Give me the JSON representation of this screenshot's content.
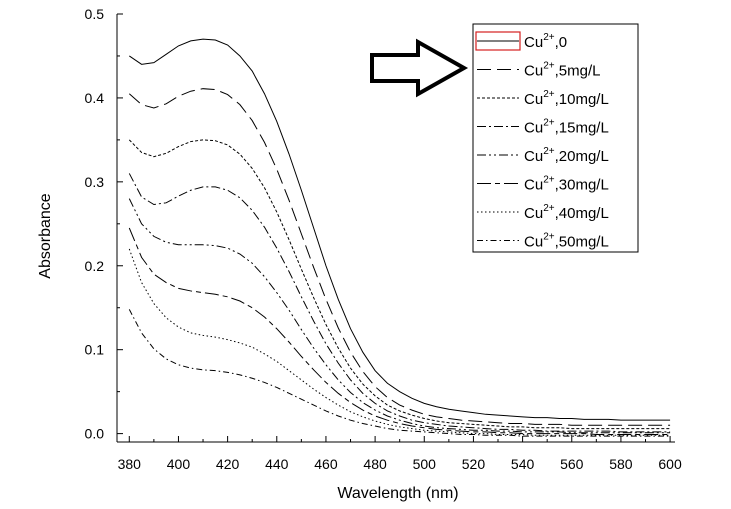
{
  "chart_data": {
    "type": "line",
    "xlabel": "Wavelength (nm)",
    "ylabel": "Absorbance",
    "xlim": [
      375,
      602
    ],
    "ylim": [
      -0.01,
      0.5
    ],
    "xticks": [
      380,
      400,
      420,
      440,
      460,
      480,
      500,
      520,
      540,
      560,
      580,
      600
    ],
    "yticks": [
      0.0,
      0.1,
      0.2,
      0.3,
      0.4,
      0.5
    ],
    "tick_labels_x": [
      "380",
      "400",
      "420",
      "440",
      "460",
      "480",
      "500",
      "520",
      "540",
      "560",
      "580",
      "600"
    ],
    "tick_labels_y": [
      "0.0",
      "0.1",
      "0.2",
      "0.3",
      "0.4",
      "0.5"
    ],
    "legend_placement": "top-right",
    "grid": false,
    "x": [
      380,
      385,
      390,
      395,
      400,
      405,
      410,
      415,
      420,
      425,
      430,
      435,
      440,
      445,
      450,
      455,
      460,
      465,
      470,
      475,
      480,
      485,
      490,
      495,
      500,
      505,
      510,
      515,
      520,
      525,
      530,
      535,
      540,
      545,
      550,
      555,
      560,
      565,
      570,
      575,
      580,
      585,
      590,
      595,
      600
    ],
    "series": [
      {
        "name": "Cu2+,0",
        "dash": "solid",
        "values": [
          0.45,
          0.44,
          0.442,
          0.452,
          0.462,
          0.468,
          0.47,
          0.469,
          0.463,
          0.45,
          0.432,
          0.405,
          0.372,
          0.333,
          0.29,
          0.245,
          0.2,
          0.16,
          0.125,
          0.097,
          0.075,
          0.06,
          0.05,
          0.042,
          0.036,
          0.032,
          0.029,
          0.027,
          0.025,
          0.023,
          0.022,
          0.021,
          0.02,
          0.019,
          0.019,
          0.018,
          0.018,
          0.017,
          0.017,
          0.017,
          0.016,
          0.016,
          0.016,
          0.016,
          0.016
        ]
      },
      {
        "name": "Cu2+,5mg/L",
        "dash": "long",
        "values": [
          0.405,
          0.392,
          0.388,
          0.393,
          0.402,
          0.408,
          0.411,
          0.41,
          0.404,
          0.392,
          0.373,
          0.347,
          0.315,
          0.278,
          0.238,
          0.198,
          0.16,
          0.126,
          0.097,
          0.074,
          0.056,
          0.043,
          0.034,
          0.028,
          0.023,
          0.02,
          0.018,
          0.016,
          0.015,
          0.014,
          0.013,
          0.012,
          0.012,
          0.011,
          0.011,
          0.011,
          0.01,
          0.01,
          0.01,
          0.01,
          0.01,
          0.01,
          0.01,
          0.01,
          0.01
        ]
      },
      {
        "name": "Cu2+,10mg/L",
        "dash": "short",
        "values": [
          0.35,
          0.335,
          0.33,
          0.334,
          0.342,
          0.348,
          0.35,
          0.349,
          0.344,
          0.333,
          0.316,
          0.293,
          0.264,
          0.231,
          0.196,
          0.162,
          0.13,
          0.102,
          0.078,
          0.059,
          0.045,
          0.034,
          0.027,
          0.022,
          0.018,
          0.015,
          0.013,
          0.012,
          0.011,
          0.01,
          0.009,
          0.008,
          0.008,
          0.007,
          0.007,
          0.007,
          0.006,
          0.006,
          0.006,
          0.006,
          0.006,
          0.006,
          0.006,
          0.006,
          0.006
        ]
      },
      {
        "name": "Cu2+,15mg/L",
        "dash": "dashdot",
        "values": [
          0.31,
          0.282,
          0.273,
          0.275,
          0.283,
          0.29,
          0.294,
          0.294,
          0.29,
          0.281,
          0.266,
          0.246,
          0.221,
          0.193,
          0.163,
          0.134,
          0.107,
          0.084,
          0.064,
          0.048,
          0.036,
          0.027,
          0.021,
          0.016,
          0.013,
          0.011,
          0.009,
          0.008,
          0.007,
          0.006,
          0.005,
          0.005,
          0.004,
          0.004,
          0.003,
          0.003,
          0.003,
          0.003,
          0.003,
          0.003,
          0.002,
          0.002,
          0.002,
          0.002,
          0.002
        ]
      },
      {
        "name": "Cu2+,20mg/L",
        "dash": "dashdotdot",
        "values": [
          0.28,
          0.25,
          0.235,
          0.228,
          0.225,
          0.225,
          0.225,
          0.224,
          0.221,
          0.214,
          0.203,
          0.187,
          0.168,
          0.147,
          0.124,
          0.102,
          0.082,
          0.064,
          0.049,
          0.037,
          0.028,
          0.021,
          0.016,
          0.012,
          0.009,
          0.007,
          0.006,
          0.005,
          0.004,
          0.004,
          0.003,
          0.003,
          0.002,
          0.002,
          0.002,
          0.002,
          0.001,
          0.001,
          0.001,
          0.001,
          0.001,
          0.001,
          0.001,
          0.001,
          0.001
        ]
      },
      {
        "name": "Cu2+,30mg/L",
        "dash": "longshort",
        "values": [
          0.245,
          0.21,
          0.19,
          0.18,
          0.173,
          0.17,
          0.168,
          0.166,
          0.163,
          0.158,
          0.15,
          0.139,
          0.125,
          0.109,
          0.092,
          0.076,
          0.061,
          0.048,
          0.037,
          0.028,
          0.021,
          0.016,
          0.012,
          0.009,
          0.007,
          0.005,
          0.004,
          0.003,
          0.002,
          0.002,
          0.001,
          0.001,
          0.0,
          0.0,
          0.0,
          0.0,
          0.0,
          0.0,
          -0.001,
          -0.001,
          -0.001,
          -0.001,
          -0.001,
          -0.001,
          -0.001
        ]
      },
      {
        "name": "Cu2+,40mg/L",
        "dash": "dot",
        "values": [
          0.22,
          0.18,
          0.155,
          0.138,
          0.127,
          0.12,
          0.117,
          0.115,
          0.112,
          0.108,
          0.103,
          0.095,
          0.086,
          0.075,
          0.064,
          0.053,
          0.043,
          0.034,
          0.026,
          0.02,
          0.015,
          0.011,
          0.008,
          0.006,
          0.004,
          0.003,
          0.002,
          0.001,
          0.0,
          0.0,
          -0.001,
          -0.001,
          -0.001,
          -0.002,
          -0.002,
          -0.002,
          -0.002,
          -0.002,
          -0.002,
          -0.002,
          -0.002,
          -0.002,
          -0.002,
          -0.002,
          -0.002
        ]
      },
      {
        "name": "Cu2+,50mg/L",
        "dash": "dashdot2",
        "values": [
          0.148,
          0.12,
          0.101,
          0.089,
          0.082,
          0.078,
          0.076,
          0.075,
          0.073,
          0.07,
          0.066,
          0.061,
          0.055,
          0.048,
          0.041,
          0.034,
          0.027,
          0.021,
          0.016,
          0.012,
          0.009,
          0.006,
          0.004,
          0.003,
          0.002,
          0.001,
          0.0,
          -0.001,
          -0.001,
          -0.002,
          -0.002,
          -0.002,
          -0.003,
          -0.003,
          -0.003,
          -0.003,
          -0.003,
          -0.003,
          -0.003,
          -0.003,
          -0.003,
          -0.003,
          -0.003,
          -0.003,
          -0.003
        ]
      }
    ]
  },
  "legend": [
    {
      "base": "Cu",
      "sup": "2+",
      "suffix": ",0"
    },
    {
      "base": "Cu",
      "sup": "2+",
      "suffix": ",5mg/L"
    },
    {
      "base": "Cu",
      "sup": "2+",
      "suffix": ",10mg/L"
    },
    {
      "base": "Cu",
      "sup": "2+",
      "suffix": ",15mg/L"
    },
    {
      "base": "Cu",
      "sup": "2+",
      "suffix": ",20mg/L"
    },
    {
      "base": "Cu",
      "sup": "2+",
      "suffix": ",30mg/L"
    },
    {
      "base": "Cu",
      "sup": "2+",
      "suffix": ",40mg/L"
    },
    {
      "base": "Cu",
      "sup": "2+",
      "suffix": ",50mg/L"
    }
  ],
  "legend_highlight_color": "#d42020",
  "annotation": {
    "icon": "right-arrow-icon"
  }
}
